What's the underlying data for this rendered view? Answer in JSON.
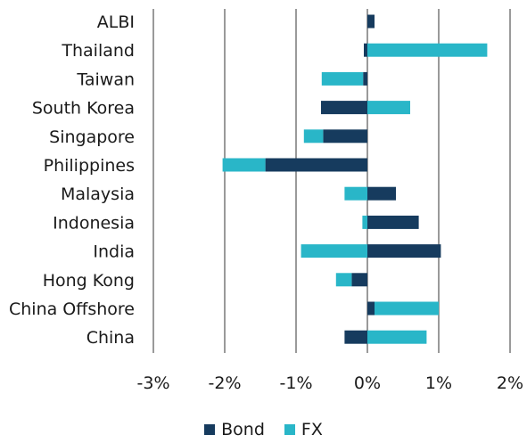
{
  "chart_data": {
    "type": "bar",
    "orientation": "horizontal",
    "stacked": true,
    "categories": [
      "ALBI",
      "Thailand",
      "Taiwan",
      "South Korea",
      "Singapore",
      "Philippines",
      "Malaysia",
      "Indonesia",
      "India",
      "Hong Kong",
      "China Offshore",
      "China"
    ],
    "series": [
      {
        "name": "Bond",
        "color": "#163b5e",
        "values": [
          0.1,
          -0.05,
          -0.06,
          -0.65,
          -0.62,
          -1.43,
          0.4,
          0.72,
          1.03,
          -0.22,
          0.1,
          -0.32
        ]
      },
      {
        "name": "FX",
        "color": "#29b6c8",
        "values": [
          0.0,
          1.68,
          -0.58,
          0.6,
          -0.27,
          -0.6,
          -0.32,
          -0.07,
          -0.93,
          -0.22,
          0.9,
          0.83
        ]
      }
    ],
    "xticks": [
      "-3%",
      "-2%",
      "-1%",
      "0%",
      "1%",
      "2%"
    ],
    "xlim": [
      -3,
      2
    ],
    "grid": "vertical",
    "legend": "bottom"
  }
}
